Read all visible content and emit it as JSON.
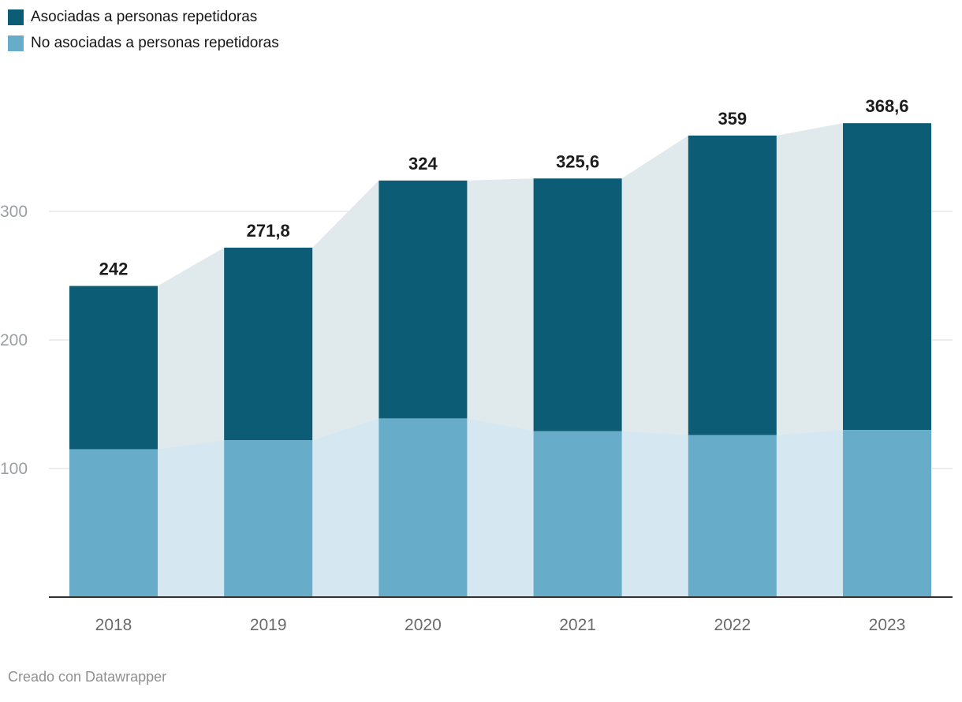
{
  "footer": {
    "credit": "Creado con Datawrapper"
  },
  "chart_data": {
    "type": "bar",
    "subtype": "stacked-columns-with-connecting-areas",
    "title": "",
    "xlabel": "",
    "ylabel": "",
    "categories": [
      "2018",
      "2019",
      "2020",
      "2021",
      "2022",
      "2023"
    ],
    "series": [
      {
        "name": "Asociadas a personas repetidoras",
        "color": "#0d5c75",
        "area_color": "#e0eaec",
        "values": [
          127,
          149.8,
          185,
          196.6,
          233,
          238.6
        ]
      },
      {
        "name": "No asociadas a personas repetidoras",
        "color": "#67adc9",
        "area_color": "#d5e8f1",
        "values": [
          115,
          122,
          139,
          129,
          126,
          130
        ]
      }
    ],
    "totals": [
      242,
      271.8,
      324,
      325.6,
      359,
      368.6
    ],
    "total_labels": [
      "242",
      "271,8",
      "324",
      "325,6",
      "359",
      "368,6"
    ],
    "y_ticks": [
      {
        "value": 300,
        "label": "300"
      },
      {
        "value": 200,
        "label": "200"
      },
      {
        "value": 100,
        "label": "100"
      }
    ],
    "ylim": [
      0,
      380
    ],
    "grid": true,
    "legend_position": "top-left"
  }
}
